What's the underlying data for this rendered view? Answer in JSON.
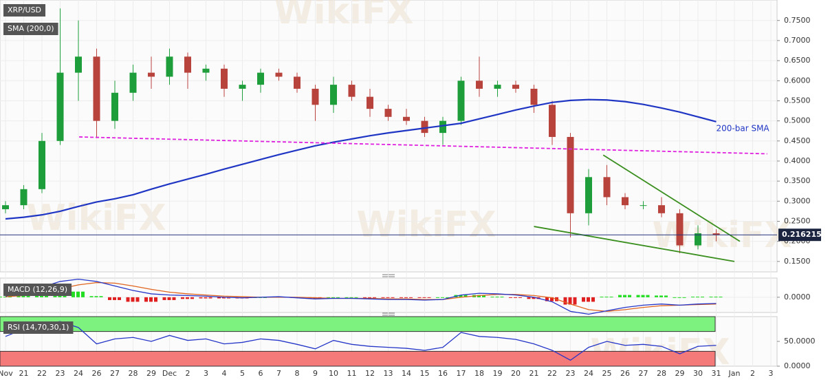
{
  "chart_data": [
    {
      "type": "candlestick",
      "title": "XRP/USD",
      "watermark": "WikiFX",
      "categories": [
        "Nov",
        "21",
        "22",
        "23",
        "24",
        "26",
        "27",
        "28",
        "29",
        "Dec",
        "2",
        "3",
        "4",
        "5",
        "6",
        "7",
        "8",
        "9",
        "10",
        "11",
        "12",
        "13",
        "14",
        "15",
        "16",
        "17",
        "18",
        "19",
        "20",
        "21",
        "22",
        "23",
        "24",
        "25",
        "26",
        "27",
        "28",
        "29",
        "30",
        "31",
        "Jan",
        "2",
        "3"
      ],
      "open": [
        0.28,
        0.29,
        0.33,
        0.45,
        0.62,
        0.66,
        0.5,
        0.57,
        0.62,
        0.61,
        0.66,
        0.62,
        0.63,
        0.58,
        0.59,
        0.62,
        0.61,
        0.58,
        0.54,
        0.59,
        0.56,
        0.53,
        0.51,
        0.5,
        0.47,
        0.5,
        0.6,
        0.58,
        0.59,
        0.58,
        0.54,
        0.46,
        0.27,
        0.36,
        0.31,
        0.29,
        0.29,
        0.27,
        0.19,
        0.22,
        null,
        null,
        null
      ],
      "high": [
        0.3,
        0.34,
        0.47,
        0.78,
        0.75,
        0.68,
        0.6,
        0.64,
        0.66,
        0.68,
        0.67,
        0.64,
        0.64,
        0.6,
        0.63,
        0.63,
        0.62,
        0.59,
        0.61,
        0.6,
        0.58,
        0.54,
        0.53,
        0.51,
        0.51,
        0.61,
        0.66,
        0.6,
        0.6,
        0.59,
        0.55,
        0.47,
        0.38,
        0.39,
        0.32,
        0.3,
        0.31,
        0.28,
        0.24,
        0.23,
        null,
        null,
        null
      ],
      "low": [
        0.27,
        0.28,
        0.32,
        0.44,
        0.55,
        0.46,
        0.48,
        0.55,
        0.58,
        0.59,
        0.58,
        0.6,
        0.56,
        0.55,
        0.57,
        0.6,
        0.57,
        0.5,
        0.52,
        0.55,
        0.51,
        0.5,
        0.49,
        0.46,
        0.44,
        0.49,
        0.56,
        0.56,
        0.57,
        0.52,
        0.44,
        0.21,
        0.24,
        0.29,
        0.28,
        0.28,
        0.26,
        0.17,
        0.18,
        0.2,
        null,
        null,
        null
      ],
      "close": [
        0.29,
        0.33,
        0.45,
        0.62,
        0.66,
        0.5,
        0.57,
        0.62,
        0.61,
        0.66,
        0.62,
        0.63,
        0.58,
        0.59,
        0.62,
        0.61,
        0.58,
        0.54,
        0.59,
        0.56,
        0.53,
        0.51,
        0.5,
        0.47,
        0.5,
        0.6,
        0.58,
        0.59,
        0.58,
        0.54,
        0.46,
        0.27,
        0.36,
        0.31,
        0.29,
        0.29,
        0.27,
        0.19,
        0.22,
        0.216215,
        null,
        null,
        null
      ],
      "up_color": "#1e9e3a",
      "down_color": "#b8433c",
      "price_line_color": "#23337a",
      "series": [
        {
          "name": "SMA (200,0)",
          "label": "200-bar SMA",
          "color": "#1f35c4",
          "values": [
            0.256,
            0.26,
            0.266,
            0.275,
            0.287,
            0.298,
            0.306,
            0.316,
            0.33,
            0.343,
            0.355,
            0.367,
            0.38,
            0.392,
            0.404,
            0.416,
            0.427,
            0.438,
            0.447,
            0.455,
            0.463,
            0.47,
            0.476,
            0.482,
            0.488,
            0.494,
            0.505,
            0.516,
            0.527,
            0.537,
            0.546,
            0.551,
            0.553,
            0.552,
            0.548,
            0.541,
            0.532,
            0.522,
            0.51,
            0.498,
            null,
            null,
            null
          ]
        }
      ],
      "trend_lines": [
        {
          "color": "#e020e0",
          "dashed": true,
          "x": [
            4.04,
            41.8
          ],
          "y": [
            0.46,
            0.418
          ]
        },
        {
          "color": "#3a8f1e",
          "dashed": false,
          "x": [
            32.8,
            40.3
          ],
          "y": [
            0.415,
            0.2
          ]
        },
        {
          "color": "#3a8f1e",
          "dashed": false,
          "x": [
            29.0,
            40.0
          ],
          "y": [
            0.237,
            0.15
          ]
        }
      ],
      "ylim": [
        0.124,
        0.801
      ],
      "yticks": [
        {
          "value": 0.15,
          "label": "0.1500"
        },
        {
          "value": 0.2,
          "label": "0.2000"
        },
        {
          "value": 0.25,
          "label": "0.2500"
        },
        {
          "value": 0.3,
          "label": "0.3000"
        },
        {
          "value": 0.35,
          "label": "0.3500"
        },
        {
          "value": 0.4,
          "label": "0.4000"
        },
        {
          "value": 0.45,
          "label": "0.4500"
        },
        {
          "value": 0.5,
          "label": "0.5000"
        },
        {
          "value": 0.55,
          "label": "0.5500"
        },
        {
          "value": 0.6,
          "label": "0.6000"
        },
        {
          "value": 0.65,
          "label": "0.6500"
        },
        {
          "value": 0.7,
          "label": "0.7000"
        },
        {
          "value": 0.75,
          "label": "0.7500"
        }
      ],
      "grid": true
    },
    {
      "type": "macd",
      "title": "MACD (12,26,9)",
      "macd": [
        0.002,
        0.008,
        0.018,
        0.028,
        0.032,
        0.028,
        0.02,
        0.012,
        0.006,
        0.004,
        0.003,
        0.002,
        0,
        -0.001,
        0,
        0.001,
        -0.001,
        -0.003,
        -0.002,
        -0.002,
        -0.003,
        -0.004,
        -0.004,
        -0.005,
        -0.004,
        0.004,
        0.007,
        0.006,
        0.004,
        0,
        -0.008,
        -0.025,
        -0.03,
        -0.024,
        -0.018,
        -0.014,
        -0.012,
        -0.014,
        -0.012,
        -0.011,
        null,
        null,
        null
      ],
      "signal": [
        0.001,
        0.003,
        0.008,
        0.015,
        0.022,
        0.026,
        0.025,
        0.02,
        0.014,
        0.009,
        0.006,
        0.004,
        0.002,
        0.001,
        0,
        0,
        0,
        -0.001,
        -0.002,
        -0.002,
        -0.002,
        -0.003,
        -0.003,
        -0.004,
        -0.004,
        0,
        0.003,
        0.005,
        0.005,
        0.003,
        -0.001,
        -0.012,
        -0.022,
        -0.025,
        -0.022,
        -0.018,
        -0.015,
        -0.014,
        -0.013,
        -0.012,
        null,
        null,
        null
      ],
      "histogram": [
        0.001,
        0.005,
        0.01,
        0.013,
        0.01,
        0.002,
        -0.005,
        -0.008,
        -0.008,
        -0.005,
        -0.003,
        -0.002,
        -0.002,
        -0.002,
        0,
        0.001,
        -0.001,
        -0.002,
        0,
        0,
        -0.001,
        -0.001,
        -0.001,
        -0.001,
        0,
        0.004,
        0.004,
        0.001,
        -0.001,
        -0.003,
        -0.007,
        -0.013,
        -0.008,
        0.001,
        0.004,
        0.004,
        0.003,
        0,
        0.001,
        0.001,
        null,
        null,
        null
      ],
      "macd_color": "#2435c8",
      "signal_color": "#e0641e",
      "up_color": "#22dd22",
      "down_color": "#e02020",
      "ylim": [
        -0.027,
        0.034
      ],
      "yticks": [
        {
          "value": 0,
          "label": "0.0000"
        }
      ]
    },
    {
      "type": "rsi",
      "title": "RSI (14,70,30,1)",
      "values": [
        60,
        75,
        85,
        90,
        78,
        45,
        55,
        58,
        50,
        62,
        52,
        55,
        45,
        48,
        55,
        52,
        44,
        35,
        52,
        44,
        40,
        38,
        36,
        32,
        38,
        68,
        60,
        58,
        54,
        45,
        32,
        12,
        38,
        50,
        42,
        44,
        40,
        25,
        40,
        42,
        null,
        null,
        null
      ],
      "color": "#2435c8",
      "upper_band": 70,
      "lower_band": 30,
      "upper_color": "#7ef27e",
      "lower_color": "#f47a7a",
      "ylim": [
        0,
        100
      ],
      "yticks": [
        {
          "value": 50,
          "label": "50.0000"
        },
        {
          "value": 0,
          "label": "0.0000"
        }
      ]
    }
  ]
}
